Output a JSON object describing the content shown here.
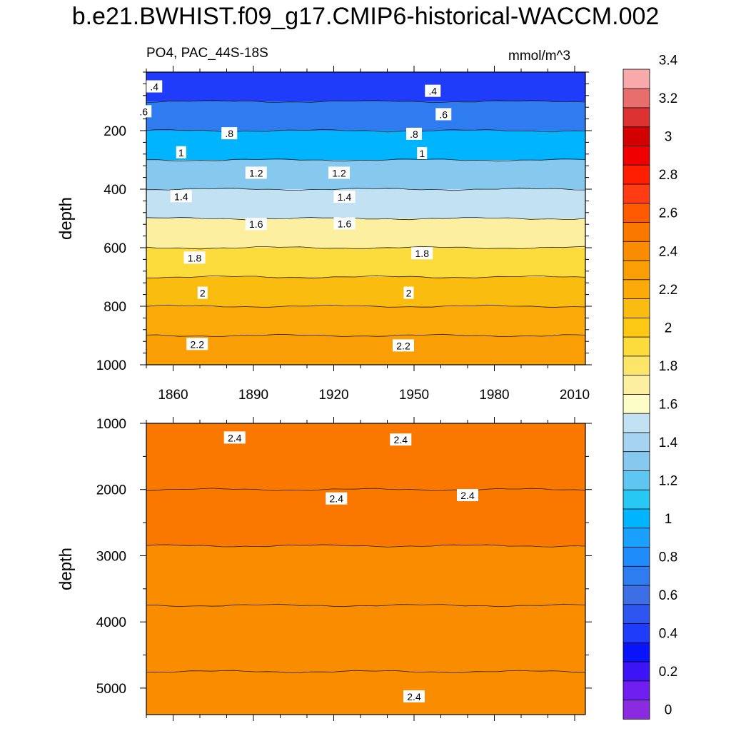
{
  "title": "b.e21.BWHIST.f09_g17.CMIP6-historical-WACCM.002",
  "subtitle_left": "PO4, PAC_44S-18S",
  "subtitle_right": "mmol/m^3",
  "colors": {
    "levels": [
      "#8a2be2",
      "#6e1ff0",
      "#3c14f5",
      "#0a14fa",
      "#1e3cfa",
      "#2f55f0",
      "#3c6ee6",
      "#2f7bf0",
      "#1e8cfa",
      "#1aa0ff",
      "#00b4ff",
      "#28c8f5",
      "#5ec6f0",
      "#86c8ee",
      "#a6d4f0",
      "#c2e2f4",
      "#fdfdc8",
      "#fcf0a0",
      "#fbe66a",
      "#fbdc3c",
      "#fcc814",
      "#fbbc10",
      "#fbaa0a",
      "#fa9e06",
      "#fa8c00",
      "#fa7800",
      "#ff5a00",
      "#ff3c14",
      "#ff1e00",
      "#f00000",
      "#d20000",
      "#dc3232",
      "#e86e6e",
      "#f8aaaa"
    ]
  },
  "chart_data": [
    {
      "type": "contour",
      "panel": "upper",
      "ylabel": "depth",
      "xlim": [
        1850,
        2014
      ],
      "ylim": [
        1000,
        0
      ],
      "xticks": [
        1860,
        1890,
        1920,
        1950,
        1980,
        2010
      ],
      "yticks": [
        200,
        400,
        600,
        800,
        1000
      ],
      "depth_profile": [
        {
          "depth": 50,
          "value": 0.35
        },
        {
          "depth": 150,
          "value": 0.6
        },
        {
          "depth": 250,
          "value": 0.95
        },
        {
          "depth": 350,
          "value": 1.2
        },
        {
          "depth": 450,
          "value": 1.45
        },
        {
          "depth": 550,
          "value": 1.65
        },
        {
          "depth": 650,
          "value": 1.85
        },
        {
          "depth": 750,
          "value": 2.0
        },
        {
          "depth": 850,
          "value": 2.12
        },
        {
          "depth": 950,
          "value": 2.22
        }
      ],
      "contour_labels": [
        {
          "x": 1853,
          "depth": 50,
          "text": ".4"
        },
        {
          "x": 1957,
          "depth": 65,
          "text": ".4"
        },
        {
          "x": 1849,
          "depth": 135,
          "text": ".6"
        },
        {
          "x": 1961,
          "depth": 145,
          "text": ".6"
        },
        {
          "x": 1881,
          "depth": 210,
          "text": ".8"
        },
        {
          "x": 1950,
          "depth": 212,
          "text": ".8"
        },
        {
          "x": 1863,
          "depth": 275,
          "text": "1"
        },
        {
          "x": 1953,
          "depth": 278,
          "text": "1"
        },
        {
          "x": 1891,
          "depth": 345,
          "text": "1.2"
        },
        {
          "x": 1922,
          "depth": 345,
          "text": "1.2"
        },
        {
          "x": 1863,
          "depth": 425,
          "text": "1.4"
        },
        {
          "x": 1924,
          "depth": 427,
          "text": "1.4"
        },
        {
          "x": 1891,
          "depth": 520,
          "text": "1.6"
        },
        {
          "x": 1924,
          "depth": 518,
          "text": "1.6"
        },
        {
          "x": 1868,
          "depth": 635,
          "text": "1.8"
        },
        {
          "x": 1953,
          "depth": 620,
          "text": "1.8"
        },
        {
          "x": 1871,
          "depth": 755,
          "text": "2"
        },
        {
          "x": 1948,
          "depth": 755,
          "text": "2"
        },
        {
          "x": 1869,
          "depth": 930,
          "text": "2.2"
        },
        {
          "x": 1946,
          "depth": 935,
          "text": "2.2"
        }
      ]
    },
    {
      "type": "contour",
      "panel": "lower",
      "ylabel": "depth",
      "xlim": [
        1850,
        2014
      ],
      "ylim": [
        5400,
        1000
      ],
      "xticks": [
        1860,
        1890,
        1920,
        1950,
        1980,
        2010
      ],
      "yticks": [
        1000,
        2000,
        3000,
        4000,
        5000
      ],
      "depth_profile": [
        {
          "depth": 1500,
          "value": 2.45
        },
        {
          "depth": 2500,
          "value": 2.45
        },
        {
          "depth": 3200,
          "value": 2.38
        },
        {
          "depth": 4300,
          "value": 2.33
        },
        {
          "depth": 5200,
          "value": 2.3
        }
      ],
      "contour_labels": [
        {
          "x": 1883,
          "depth": 1220,
          "text": "2.4"
        },
        {
          "x": 1945,
          "depth": 1250,
          "text": "2.4"
        },
        {
          "x": 1921,
          "depth": 2140,
          "text": "2.4"
        },
        {
          "x": 1970,
          "depth": 2090,
          "text": "2.4"
        },
        {
          "x": 1950,
          "depth": 5130,
          "text": "2.4"
        }
      ]
    },
    {
      "type": "colorbar",
      "tick_labels": [
        "0",
        "0.2",
        "0.4",
        "0.6",
        "0.8",
        "1",
        "1.2",
        "1.4",
        "1.6",
        "1.8",
        "2",
        "2.2",
        "2.4",
        "2.6",
        "2.8",
        "3",
        "3.2",
        "3.4"
      ]
    }
  ]
}
